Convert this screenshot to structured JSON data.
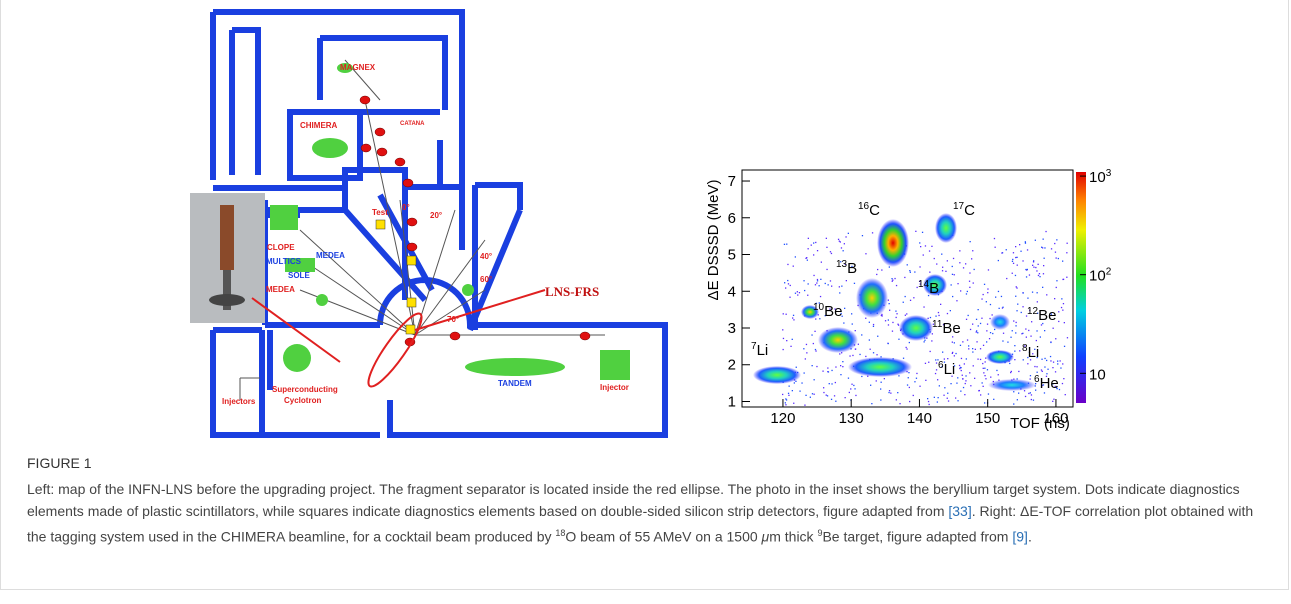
{
  "figure": {
    "map": {
      "labels": [
        "MAGNEX",
        "CHIMERA",
        "CATANA",
        "Test",
        "0°",
        "20°",
        "40°",
        "60°",
        "70°",
        "CLOPE",
        "MEDEA",
        "MULTICS",
        "SOLE",
        "MEDEA",
        "LNS-FRS",
        "Superconducting",
        "Cyclotron",
        "TANDEM",
        "Injector",
        "Injectors"
      ]
    },
    "plot": {
      "xlabel": "TOF (ns)",
      "ylabel": "ΔE DSSSD (MeV)",
      "xlim": [
        114,
        162.5
      ],
      "xticks": [
        120,
        130,
        140,
        150,
        160
      ],
      "ylim": [
        0.85,
        7.3
      ],
      "yticks": [
        1,
        2,
        3,
        4,
        5,
        6,
        7
      ],
      "clim": [
        5,
        1100
      ],
      "log_colorbar": true,
      "cticks": [
        {
          "value": 10,
          "base": "10",
          "exp": ""
        },
        {
          "value": 100,
          "base": "10",
          "exp": "2"
        },
        {
          "value": 1000,
          "base": "10",
          "exp": "3"
        }
      ],
      "isotopes": [
        {
          "mass": "16",
          "element": "C"
        },
        {
          "mass": "17",
          "element": "C"
        },
        {
          "mass": "13",
          "element": "B"
        },
        {
          "mass": "14",
          "element": "B"
        },
        {
          "mass": "10",
          "element": "Be"
        },
        {
          "mass": "11",
          "element": "Be"
        },
        {
          "mass": "12",
          "element": "Be"
        },
        {
          "mass": "7",
          "element": "Li"
        },
        {
          "mass": "6",
          "element": "Li"
        },
        {
          "mass": "8",
          "element": "Li"
        },
        {
          "mass": "6",
          "element": "He"
        }
      ]
    },
    "label": "FIGURE 1",
    "caption": [
      {
        "t": "Left: map of the INFN-LNS before the upgrading project. The fragment separator is located inside the red ellipse. The photo in the inset shows the beryllium target system. Dots indicate diagnostics elements made of plastic scintillators, while squares indicate diagnostics elements based on double-sided silicon strip detectors, figure adapted from "
      },
      {
        "t": "[33]",
        "link": true
      },
      {
        "t": ". Right: ΔE-TOF correlation plot obtained with the tagging system used in the CHIMERA beamline, for a cocktail beam produced by "
      },
      {
        "t": "18",
        "sup": true
      },
      {
        "t": "O beam of 55 AMeV on a 1500 "
      },
      {
        "t": "μ",
        "italic": true
      },
      {
        "t": "m thick "
      },
      {
        "t": "9",
        "sup": true
      },
      {
        "t": "Be target, figure adapted from "
      },
      {
        "t": "[9]",
        "link": true
      },
      {
        "t": "."
      }
    ]
  }
}
